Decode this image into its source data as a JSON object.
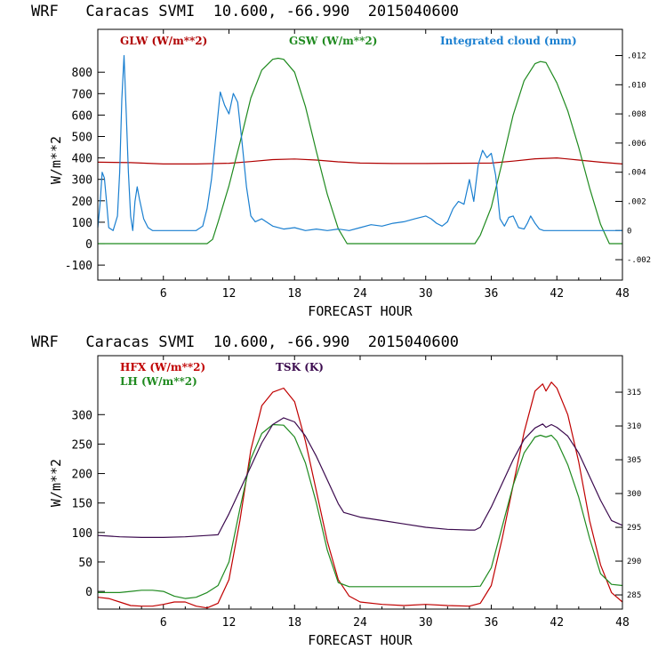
{
  "chart_data": [
    {
      "type": "line",
      "title": "WRF   Caracas SVMI  10.600, -66.990  2015040600",
      "xlabel": "FORECAST HOUR",
      "ylabel": "W/m**2",
      "xlim": [
        0,
        48
      ],
      "ylim": [
        -170,
        1000
      ],
      "xticks": [
        6,
        12,
        18,
        24,
        30,
        36,
        42,
        48
      ],
      "yticks": [
        -100,
        0,
        100,
        200,
        300,
        400,
        500,
        600,
        700,
        800
      ],
      "y2lim": [
        -0.0034,
        0.0138
      ],
      "y2ticks": [
        -0.002,
        0,
        0.002,
        0.004,
        0.006,
        0.008,
        0.01,
        0.012
      ],
      "y2ticklabels": [
        "-.002",
        "0",
        ".002",
        ".004",
        ".006",
        ".008",
        ".010",
        ".012"
      ],
      "series": [
        {
          "name": "GLW (W/m**2)",
          "color": "#b00000",
          "axis": "left",
          "x": [
            0,
            3,
            6,
            9,
            12,
            14,
            16,
            18,
            20,
            22,
            24,
            27,
            30,
            33,
            36,
            38,
            40,
            42,
            44,
            46,
            48
          ],
          "y": [
            380,
            378,
            372,
            372,
            375,
            383,
            392,
            395,
            390,
            382,
            376,
            374,
            374,
            375,
            376,
            385,
            396,
            400,
            390,
            380,
            372
          ]
        },
        {
          "name": "GSW (W/m**2)",
          "color": "#1f8a1f",
          "axis": "left",
          "x": [
            0,
            10,
            10.5,
            11,
            12,
            13,
            14,
            15,
            16,
            16.5,
            17,
            18,
            19,
            20,
            21,
            22,
            22.8,
            34.5,
            35,
            36,
            37,
            38,
            39,
            40,
            40.5,
            41,
            42,
            43,
            44,
            45,
            46,
            46.8,
            48
          ],
          "y": [
            0,
            0,
            20,
            100,
            270,
            470,
            680,
            810,
            860,
            865,
            860,
            800,
            640,
            430,
            230,
            70,
            0,
            0,
            40,
            170,
            380,
            600,
            760,
            840,
            850,
            845,
            750,
            620,
            450,
            260,
            90,
            0,
            0
          ]
        },
        {
          "name": "Integrated cloud (mm)",
          "color": "#1a7fd0",
          "axis": "right",
          "x": [
            0,
            0.2,
            0.4,
            0.6,
            0.8,
            1.0,
            1.4,
            1.8,
            2.0,
            2.2,
            2.4,
            2.6,
            2.8,
            3.0,
            3.2,
            3.4,
            3.6,
            3.8,
            4.2,
            4.6,
            5.0,
            5.4,
            6.0,
            8.0,
            9.0,
            9.6,
            10.0,
            10.4,
            10.8,
            11.2,
            11.6,
            12.0,
            12.4,
            12.8,
            13.2,
            13.6,
            14.0,
            14.4,
            15.0,
            16.0,
            17.0,
            18.0,
            19.0,
            20.0,
            21.0,
            22.0,
            23.0,
            24.0,
            25.0,
            26.0,
            27.0,
            28.0,
            29.0,
            30.0,
            30.5,
            31.0,
            31.5,
            32.0,
            32.5,
            33.0,
            33.5,
            34.0,
            34.4,
            34.8,
            35.2,
            35.6,
            36.0,
            36.4,
            36.8,
            37.2,
            37.6,
            38.0,
            38.5,
            39.0,
            39.3,
            39.6,
            40.0,
            40.4,
            40.8,
            41.5,
            44.0,
            48.0
          ],
          "y": [
            0.0002,
            0.0018,
            0.004,
            0.0036,
            0.002,
            0.0002,
            0.0,
            0.001,
            0.004,
            0.009,
            0.012,
            0.008,
            0.004,
            0.001,
            0.0,
            0.002,
            0.003,
            0.0022,
            0.0008,
            0.0002,
            0.0,
            0.0,
            0.0,
            0.0,
            0.0,
            0.0003,
            0.0015,
            0.0035,
            0.0065,
            0.0095,
            0.0086,
            0.008,
            0.0094,
            0.0088,
            0.006,
            0.003,
            0.001,
            0.0006,
            0.0008,
            0.0003,
            0.0001,
            0.0002,
            0.0,
            0.0001,
            0.0,
            0.0001,
            0.0,
            0.0002,
            0.0004,
            0.0003,
            0.0005,
            0.0006,
            0.0008,
            0.001,
            0.0008,
            0.0005,
            0.0003,
            0.0006,
            0.0015,
            0.002,
            0.0018,
            0.0035,
            0.002,
            0.0045,
            0.0055,
            0.005,
            0.0053,
            0.0038,
            0.0008,
            0.0003,
            0.0009,
            0.001,
            0.0002,
            0.0001,
            0.0005,
            0.001,
            0.0005,
            0.0001,
            0.0,
            0.0,
            0.0,
            0.0
          ]
        }
      ]
    },
    {
      "type": "line",
      "title": "WRF   Caracas SVMI  10.600, -66.990  2015040600",
      "xlabel": "FORECAST HOUR",
      "ylabel": "W/m**2",
      "xlim": [
        0,
        48
      ],
      "ylim": [
        -30,
        400
      ],
      "xticks": [
        6,
        12,
        18,
        24,
        30,
        36,
        42,
        48
      ],
      "yticks": [
        0,
        50,
        100,
        150,
        200,
        250,
        300
      ],
      "y2lim": [
        282.9,
        320.4
      ],
      "y2ticks": [
        285,
        290,
        295,
        300,
        305,
        310,
        315
      ],
      "y2ticklabels": [
        "285",
        "290",
        "295",
        "300",
        "305",
        "310",
        "315"
      ],
      "series": [
        {
          "name": "HFX (W/m**2)",
          "color": "#c00000",
          "axis": "left",
          "x": [
            0,
            1,
            2,
            3,
            4,
            5,
            6,
            7,
            8,
            9,
            10,
            11,
            12,
            13,
            14,
            15,
            16,
            17,
            18,
            19,
            20,
            21,
            22,
            23,
            24,
            26,
            28,
            30,
            32,
            34,
            35,
            36,
            37,
            38,
            39,
            40,
            40.7,
            41,
            41.5,
            42,
            43,
            44,
            45,
            46,
            47,
            48
          ],
          "y": [
            -10,
            -12,
            -18,
            -24,
            -25,
            -25,
            -22,
            -18,
            -18,
            -25,
            -28,
            -20,
            20,
            120,
            240,
            315,
            338,
            345,
            322,
            255,
            170,
            85,
            20,
            -8,
            -18,
            -22,
            -24,
            -22,
            -24,
            -25,
            -20,
            10,
            90,
            180,
            270,
            340,
            352,
            340,
            355,
            345,
            300,
            220,
            120,
            45,
            -2,
            -18
          ]
        },
        {
          "name": "LH (W/m**2)",
          "color": "#1f8a1f",
          "axis": "left",
          "x": [
            0,
            1,
            2,
            3,
            4,
            5,
            6,
            7,
            8,
            9,
            10,
            11,
            12,
            13,
            14,
            15,
            16,
            17,
            18,
            19,
            20,
            21,
            22,
            23,
            24,
            26,
            28,
            30,
            32,
            34,
            35,
            36,
            37,
            38,
            39,
            40,
            40.5,
            41,
            41.5,
            42,
            43,
            44,
            45,
            46,
            47,
            48
          ],
          "y": [
            -2,
            -2,
            -2,
            0,
            2,
            2,
            0,
            -8,
            -12,
            -10,
            -2,
            10,
            50,
            140,
            225,
            268,
            283,
            282,
            262,
            218,
            150,
            70,
            15,
            8,
            8,
            8,
            8,
            8,
            8,
            8,
            9,
            40,
            110,
            180,
            235,
            262,
            265,
            262,
            265,
            255,
            215,
            160,
            90,
            30,
            12,
            10
          ]
        },
        {
          "name": "TSK (K)",
          "color": "#3b0a4e",
          "axis": "right",
          "x": [
            0,
            1,
            2,
            4,
            6,
            8,
            10,
            11,
            12,
            13,
            14,
            15,
            16,
            17,
            18,
            19,
            20,
            21,
            22,
            22.5,
            24,
            26,
            28,
            30,
            32,
            34,
            34.5,
            35,
            36,
            37,
            38,
            39,
            40,
            40.7,
            41,
            41.5,
            42,
            43,
            44,
            45,
            46,
            47,
            48
          ],
          "y": [
            293.8,
            293.7,
            293.6,
            293.5,
            293.5,
            293.6,
            293.8,
            293.9,
            297.0,
            300.5,
            304.0,
            307.5,
            310.2,
            311.2,
            310.6,
            308.5,
            305.5,
            302.0,
            298.5,
            297.2,
            296.5,
            296.0,
            295.5,
            295.0,
            294.7,
            294.6,
            294.6,
            295.0,
            298.0,
            301.5,
            305.0,
            308.0,
            309.7,
            310.3,
            309.8,
            310.2,
            309.8,
            308.5,
            306.0,
            302.5,
            299.0,
            296.0,
            295.3
          ]
        }
      ]
    }
  ]
}
